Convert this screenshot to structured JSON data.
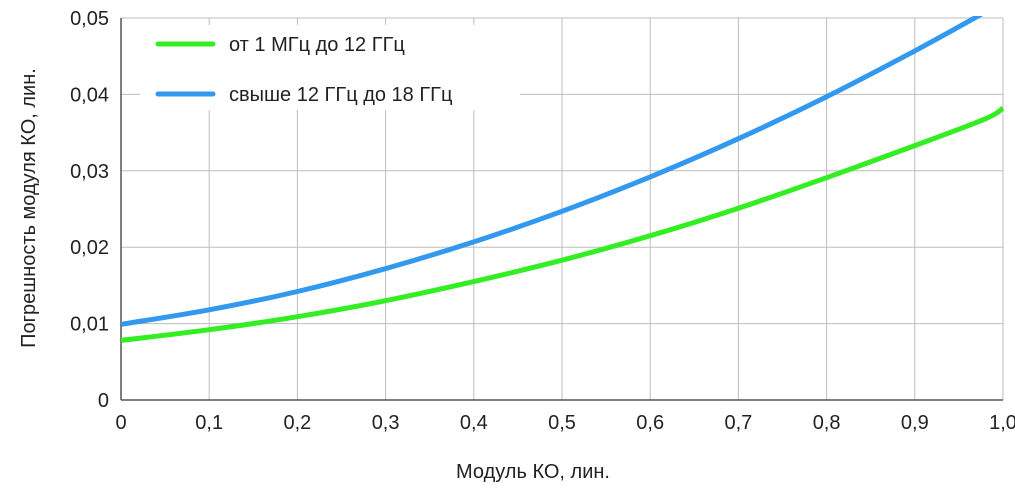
{
  "chart_data": {
    "type": "line",
    "xlabel": "Модуль КО, лин.",
    "ylabel": "Погрешность модуля  КО, лин.",
    "xlim": [
      0,
      1.0
    ],
    "ylim": [
      0,
      0.05
    ],
    "x_ticks": [
      0,
      0.1,
      0.2,
      0.3,
      0.4,
      0.5,
      0.6,
      0.7,
      0.8,
      0.9,
      1.0
    ],
    "x_tick_labels": [
      "0",
      "0,1",
      "0,2",
      "0,3",
      "0,4",
      "0,5",
      "0,6",
      "0,7",
      "0,8",
      "0,9",
      "1,0"
    ],
    "y_ticks": [
      0,
      0.01,
      0.02,
      0.03,
      0.04,
      0.05
    ],
    "y_tick_labels": [
      "0",
      "0,01",
      "0,02",
      "0,03",
      "0,04",
      "0,05"
    ],
    "grid": true,
    "legend_position": "top-left",
    "x": [
      0,
      0.1,
      0.2,
      0.3,
      0.4,
      0.5,
      0.6,
      0.7,
      0.8,
      0.9,
      0.98,
      1.0
    ],
    "series": [
      {
        "name": "от 1 МГц до 12 ГГц",
        "color": "#33ee22",
        "values": [
          0.0078,
          0.0092,
          0.0109,
          0.013,
          0.0155,
          0.0183,
          0.0215,
          0.0251,
          0.0291,
          0.0333,
          0.0368,
          0.0382
        ]
      },
      {
        "name": "свыше 12 ГГц до 18 ГГц",
        "color": "#3399ee",
        "values": [
          0.0099,
          0.0118,
          0.0142,
          0.0172,
          0.0207,
          0.0247,
          0.0292,
          0.0342,
          0.0397,
          0.0457,
          0.0508,
          0.0522
        ]
      }
    ]
  }
}
